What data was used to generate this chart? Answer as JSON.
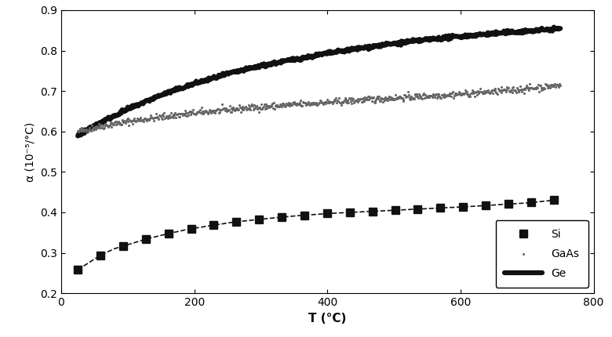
{
  "title": "",
  "xlabel": "T (°C)",
  "ylabel": "α (10⁻⁵/°C)",
  "xlim": [
    0,
    800
  ],
  "ylim": [
    0.2,
    0.9
  ],
  "xticks": [
    0,
    200,
    400,
    600,
    800
  ],
  "yticks": [
    0.2,
    0.3,
    0.4,
    0.5,
    0.6,
    0.7,
    0.8,
    0.9
  ],
  "Si": {
    "T": [
      25,
      60,
      80,
      100,
      130,
      160,
      190,
      220,
      260,
      300,
      350,
      400,
      450,
      500,
      550,
      600,
      650,
      700,
      740
    ],
    "alpha": [
      0.258,
      0.295,
      0.31,
      0.32,
      0.335,
      0.347,
      0.358,
      0.366,
      0.376,
      0.383,
      0.391,
      0.397,
      0.401,
      0.405,
      0.409,
      0.413,
      0.418,
      0.423,
      0.43
    ],
    "color": "#111111",
    "linestyle": "--",
    "marker": "s",
    "markersize": 7,
    "linewidth": 1.2,
    "label": "Si"
  },
  "GaAs": {
    "T": [
      25,
      50,
      75,
      100,
      125,
      150,
      175,
      200,
      250,
      300,
      350,
      400,
      450,
      500,
      550,
      600,
      650,
      700,
      750
    ],
    "alpha": [
      0.6,
      0.61,
      0.618,
      0.625,
      0.631,
      0.636,
      0.641,
      0.646,
      0.654,
      0.661,
      0.667,
      0.672,
      0.678,
      0.683,
      0.688,
      0.693,
      0.699,
      0.706,
      0.715
    ],
    "color": "#666666",
    "linestyle": "-",
    "linewidth": 1.0,
    "label": "GaAs"
  },
  "Ge": {
    "T": [
      25,
      50,
      75,
      100,
      150,
      200,
      250,
      300,
      350,
      400,
      450,
      500,
      550,
      600,
      650,
      700,
      750
    ],
    "alpha": [
      0.59,
      0.615,
      0.635,
      0.655,
      0.69,
      0.718,
      0.742,
      0.762,
      0.778,
      0.793,
      0.806,
      0.817,
      0.827,
      0.835,
      0.842,
      0.848,
      0.854
    ],
    "color": "#111111",
    "linestyle": "-",
    "linewidth": 4.5,
    "label": "Ge"
  },
  "legend_loc": "lower right",
  "background_color": "#ffffff",
  "figsize": [
    7.8,
    4.3
  ],
  "dpi": 100
}
